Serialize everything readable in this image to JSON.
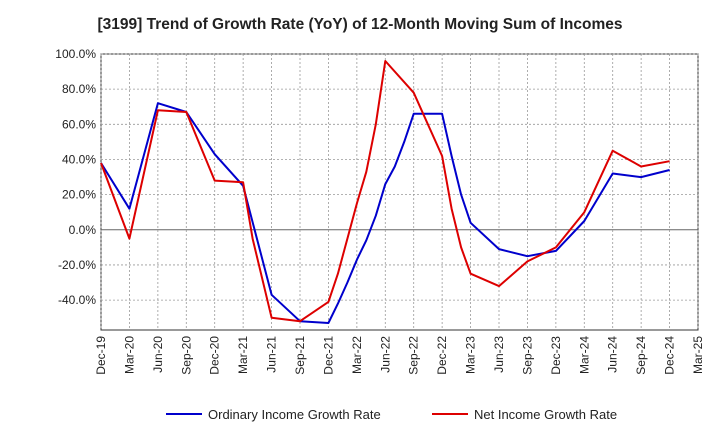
{
  "chart_data": {
    "type": "line",
    "title": "[3199]  Trend of Growth Rate (YoY) of 12-Month Moving Sum of Incomes",
    "xlabel": "",
    "ylabel": "",
    "x": [
      "Dec-19",
      "Jan-20",
      "Feb-20",
      "Mar-20",
      "Apr-20",
      "May-20",
      "Jun-20",
      "Jul-20",
      "Aug-20",
      "Sep-20",
      "Oct-20",
      "Nov-20",
      "Dec-20",
      "Jan-21",
      "Feb-21",
      "Mar-21",
      "Apr-21",
      "May-21",
      "Jun-21",
      "Jul-21",
      "Aug-21",
      "Sep-21",
      "Oct-21",
      "Nov-21",
      "Dec-21",
      "Jan-22",
      "Feb-22",
      "Mar-22",
      "Apr-22",
      "May-22",
      "Jun-22",
      "Jul-22",
      "Aug-22",
      "Sep-22",
      "Oct-22",
      "Nov-22",
      "Dec-22",
      "Jan-23",
      "Feb-23",
      "Mar-23",
      "Apr-23",
      "May-23",
      "Jun-23",
      "Jul-23",
      "Aug-23",
      "Sep-23",
      "Oct-23",
      "Nov-23",
      "Dec-23",
      "Jan-24",
      "Feb-24",
      "Mar-24",
      "Apr-24",
      "May-24",
      "Jun-24",
      "Jul-24",
      "Aug-24",
      "Sep-24",
      "Oct-24",
      "Nov-24",
      "Dec-24",
      "Jan-25",
      "Feb-25",
      "Mar-25"
    ],
    "tick_labels": [
      "Dec-19",
      "Mar-20",
      "Jun-20",
      "Sep-20",
      "Dec-20",
      "Mar-21",
      "Jun-21",
      "Sep-21",
      "Dec-21",
      "Mar-22",
      "Jun-22",
      "Sep-22",
      "Dec-22",
      "Mar-23",
      "Jun-23",
      "Sep-23",
      "Dec-23",
      "Mar-24",
      "Jun-24",
      "Sep-24",
      "Dec-24",
      "Mar-25"
    ],
    "ylim": [
      -57,
      100
    ],
    "yticks": [
      100,
      80,
      60,
      40,
      20,
      0,
      -20,
      -40
    ],
    "ytick_labels": [
      "100.0%",
      "80.0%",
      "60.0%",
      "40.0%",
      "20.0%",
      "0.0%",
      "-20.0%",
      "-40.0%"
    ],
    "grid": true,
    "legend_position": "bottom",
    "series": [
      {
        "name": "Ordinary Income Growth Rate",
        "color": "#0000cc",
        "points": [
          [
            "Dec-19",
            38
          ],
          [
            "Mar-20",
            12
          ],
          [
            "Jun-20",
            72
          ],
          [
            "Sep-20",
            67
          ],
          [
            "Dec-20",
            43
          ],
          [
            "Mar-21",
            25
          ],
          [
            "Jun-21",
            -37
          ],
          [
            "Sep-21",
            -52
          ],
          [
            "Dec-21",
            -53
          ],
          [
            "Jan-22",
            -42
          ],
          [
            "Feb-22",
            -30
          ],
          [
            "Mar-22",
            -17
          ],
          [
            "Apr-22",
            -6
          ],
          [
            "May-22",
            8
          ],
          [
            "Jun-22",
            26
          ],
          [
            "Jul-22",
            36
          ],
          [
            "Aug-22",
            50
          ],
          [
            "Sep-22",
            66
          ],
          [
            "Dec-22",
            66
          ],
          [
            "Jan-23",
            42
          ],
          [
            "Feb-23",
            20
          ],
          [
            "Mar-23",
            4
          ],
          [
            "Jun-23",
            -11
          ],
          [
            "Sep-23",
            -15
          ],
          [
            "Dec-23",
            -12
          ],
          [
            "Mar-24",
            5
          ],
          [
            "Jun-24",
            32
          ],
          [
            "Sep-24",
            30
          ],
          [
            "Dec-24",
            34
          ]
        ]
      },
      {
        "name": "Net Income Growth Rate",
        "color": "#dd0000",
        "points": [
          [
            "Dec-19",
            38
          ],
          [
            "Mar-20",
            -5
          ],
          [
            "Jun-20",
            68
          ],
          [
            "Sep-20",
            67
          ],
          [
            "Dec-20",
            28
          ],
          [
            "Mar-21",
            27
          ],
          [
            "Apr-21",
            -5
          ],
          [
            "Jun-21",
            -50
          ],
          [
            "Sep-21",
            -52
          ],
          [
            "Dec-21",
            -41
          ],
          [
            "Jan-22",
            -25
          ],
          [
            "Feb-22",
            -5
          ],
          [
            "Mar-22",
            15
          ],
          [
            "Apr-22",
            33
          ],
          [
            "May-22",
            60
          ],
          [
            "Jun-22",
            96
          ],
          [
            "Sep-22",
            78
          ],
          [
            "Dec-22",
            42
          ],
          [
            "Jan-23",
            12
          ],
          [
            "Feb-23",
            -10
          ],
          [
            "Mar-23",
            -25
          ],
          [
            "Jun-23",
            -32
          ],
          [
            "Sep-23",
            -18
          ],
          [
            "Dec-23",
            -10
          ],
          [
            "Mar-24",
            10
          ],
          [
            "Jun-24",
            45
          ],
          [
            "Sep-24",
            36
          ],
          [
            "Dec-24",
            39
          ]
        ]
      }
    ]
  }
}
